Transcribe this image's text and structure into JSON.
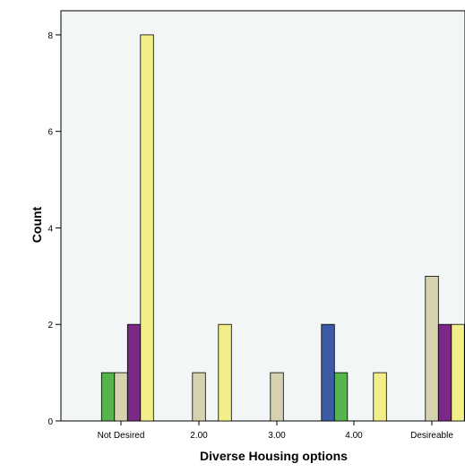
{
  "chart_data": {
    "type": "bar",
    "title": "",
    "xlabel": "Diverse Housing options",
    "ylabel": "Count",
    "categories": [
      "Not Desired",
      "2.00",
      "3.00",
      "4.00",
      "Desireable"
    ],
    "ylim": [
      0,
      8.5
    ],
    "yticks": [
      0,
      2,
      4,
      6,
      8
    ],
    "grid": false,
    "series": [
      {
        "color": "#3c5aa6",
        "values": [
          0,
          0,
          0,
          2,
          0
        ]
      },
      {
        "color": "#55b54c",
        "values": [
          1,
          0,
          0,
          1,
          0
        ]
      },
      {
        "color": "#d6d2b0",
        "values": [
          1,
          1,
          1,
          0,
          3
        ]
      },
      {
        "color": "#7a2a86",
        "values": [
          2,
          0,
          0,
          0,
          2
        ]
      },
      {
        "color": "#f2ee8a",
        "values": [
          8,
          2,
          0,
          1,
          2
        ]
      }
    ],
    "plot_background": "#f3f6f6"
  }
}
